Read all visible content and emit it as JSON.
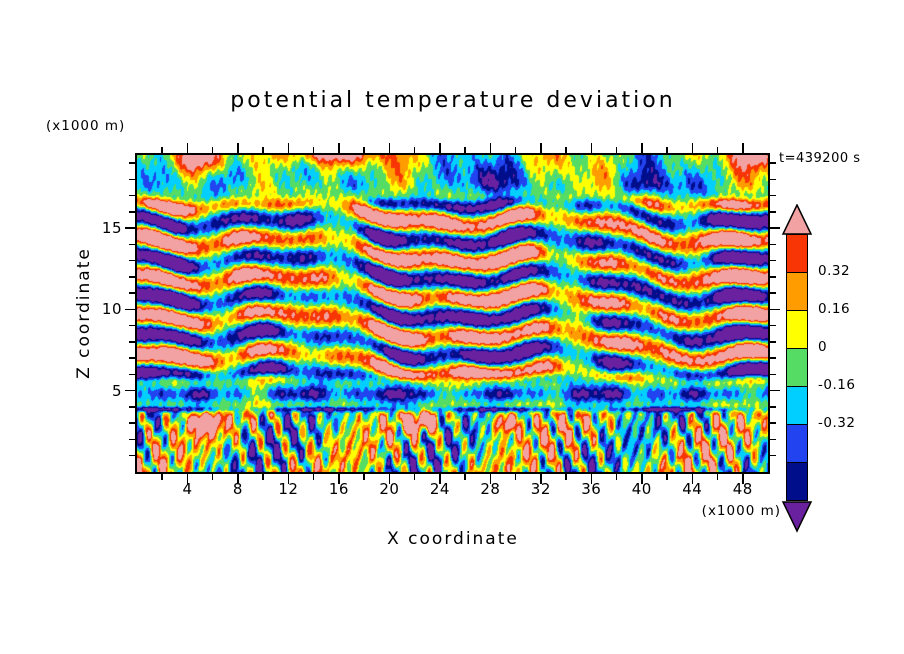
{
  "figure": {
    "background": "#ffffff"
  },
  "chart_data": {
    "type": "heatmap",
    "title": "potential temperature deviation",
    "time_label": "t=439200 s",
    "xlabel": "X coordinate",
    "ylabel": "Z coordinate",
    "x_unit_label": "(x1000 m)",
    "y_unit_label": "(x1000 m)",
    "xlim": [
      0,
      50
    ],
    "ylim": [
      0,
      19.5
    ],
    "x_major_ticks": [
      4,
      8,
      12,
      16,
      20,
      24,
      28,
      32,
      36,
      40,
      44,
      48
    ],
    "x_minor_step": 2,
    "y_major_ticks": [
      5,
      10,
      15
    ],
    "y_minor_step": 1,
    "grid": false,
    "legend_position": "right-colorbar",
    "colorbar": {
      "tick_labels": [
        "0.32",
        "0.16",
        "0",
        "-0.16",
        "-0.32"
      ],
      "levels": [
        0.48,
        0.32,
        0.16,
        0,
        -0.16,
        -0.32,
        -0.48,
        -0.64
      ],
      "colors": [
        {
          "name": "pink-above-max",
          "hex": "#F2A2A2"
        },
        {
          "name": "red",
          "hex": "#F83505"
        },
        {
          "name": "orange",
          "hex": "#FF9C00"
        },
        {
          "name": "yellow",
          "hex": "#FFFF00"
        },
        {
          "name": "green",
          "hex": "#55DC64"
        },
        {
          "name": "cyan",
          "hex": "#00CFFF"
        },
        {
          "name": "blue",
          "hex": "#2144F0"
        },
        {
          "name": "navy",
          "hex": "#000E8C"
        },
        {
          "name": "purple-below-min",
          "hex": "#6A21A0"
        }
      ]
    },
    "field_summary": "Filled-contour vertical cross-section of potential temperature deviation: tilted layered wave structure between z=5 and z=17 (warm pink/red slabs alternating with cold navy/purple slabs), a cold cyan-blue stripe near z=4.8, a thin dark layer near z=3.9, small-scale convective mottling below z=4, and a calm green region above z=17."
  }
}
